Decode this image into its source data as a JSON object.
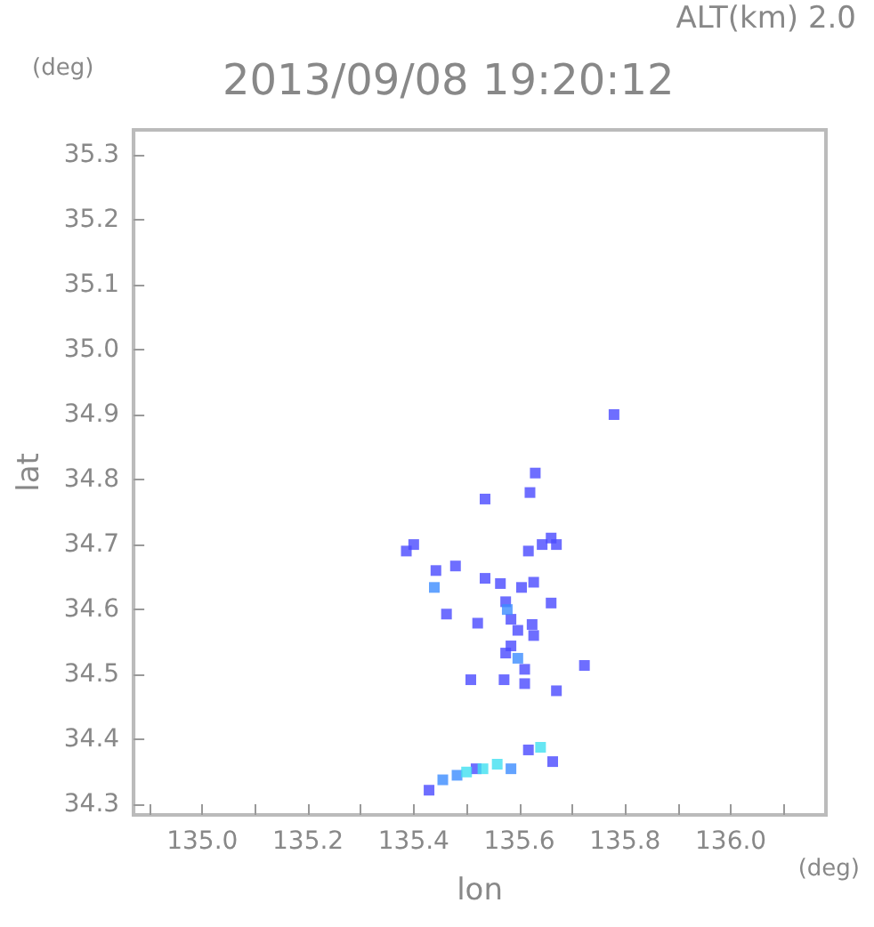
{
  "chart_data": {
    "type": "scatter",
    "title": "2013/09/08 19:20:12",
    "xlabel": "lon",
    "ylabel": "lat",
    "annotations": [
      "ALT(km) 2.0",
      "(deg)",
      "(deg)"
    ],
    "xlim": [
      134.87,
      136.18
    ],
    "ylim": [
      34.284,
      35.338
    ],
    "xticks": [
      {
        "value": 134.9,
        "label": null
      },
      {
        "value": 135,
        "label": "135.0"
      },
      {
        "value": 135.1,
        "label": null
      },
      {
        "value": 135.2,
        "label": "135.2"
      },
      {
        "value": 135.3,
        "label": null
      },
      {
        "value": 135.4,
        "label": "135.4"
      },
      {
        "value": 135.5,
        "label": null
      },
      {
        "value": 135.6,
        "label": "135.6"
      },
      {
        "value": 135.7,
        "label": null
      },
      {
        "value": 135.8,
        "label": "135.8"
      },
      {
        "value": 135.9,
        "label": null
      },
      {
        "value": 136,
        "label": "136.0"
      },
      {
        "value": 136.1,
        "label": null
      }
    ],
    "yticks": [
      34.3,
      34.4,
      34.5,
      34.6,
      34.7,
      34.8,
      34.9,
      {
        "value": 35,
        "label": "35.0"
      },
      35.1,
      35.2,
      35.3
    ],
    "marker": "square",
    "grid": false,
    "series": [
      {
        "color": "#4a4aff",
        "x": [
          135.779,
          135.63,
          135.62,
          135.535,
          135.4,
          135.386,
          135.67,
          135.66,
          135.617,
          135.643,
          135.442,
          135.479,
          135.535,
          135.564,
          135.604,
          135.627,
          135.462,
          135.521,
          135.574,
          135.584,
          135.624,
          135.597,
          135.627,
          135.584,
          135.574,
          135.61,
          135.571,
          135.508,
          135.61,
          135.723,
          135.67,
          135.66,
          135.663,
          135.617,
          135.429,
          135.518
        ],
        "values": [
          34.9,
          34.81,
          34.78,
          34.77,
          34.7,
          34.69,
          34.7,
          34.71,
          34.69,
          34.7,
          34.66,
          34.667,
          34.648,
          34.64,
          34.634,
          34.642,
          34.593,
          34.579,
          34.612,
          34.585,
          34.577,
          34.568,
          34.56,
          34.544,
          34.533,
          34.508,
          34.492,
          34.492,
          34.486,
          34.514,
          34.475,
          34.61,
          34.366,
          34.384,
          34.322,
          34.355
        ]
      },
      {
        "color": "#3c8cff",
        "x": [
          135.439,
          135.577,
          135.597,
          135.482,
          135.584,
          135.455
        ],
        "values": [
          34.634,
          34.6,
          34.525,
          34.345,
          34.355,
          34.338
        ]
      },
      {
        "color": "#40e0f0",
        "x": [
          135.64,
          135.558,
          135.5,
          135.531
        ],
        "values": [
          34.388,
          34.362,
          34.35,
          34.355
        ]
      }
    ]
  }
}
